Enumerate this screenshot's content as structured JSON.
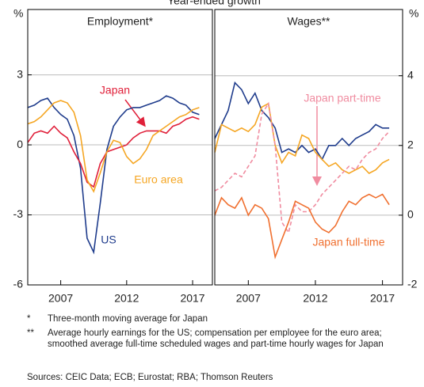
{
  "title": "Year-ended growth",
  "chart_data": [
    {
      "type": "line",
      "title": "Employment*",
      "y_unit": "%",
      "yaxis_side": "left",
      "x": [
        2004.5,
        2005,
        2005.5,
        2006,
        2006.5,
        2007,
        2007.5,
        2008,
        2008.5,
        2009,
        2009.5,
        2010,
        2010.5,
        2011,
        2011.5,
        2012,
        2012.5,
        2013,
        2013.5,
        2014,
        2014.5,
        2015,
        2015.5,
        2016,
        2016.5,
        2017,
        2017.5
      ],
      "xlim": [
        2004.5,
        2018.5
      ],
      "xticks": [
        2007,
        2012,
        2017
      ],
      "ylim": [
        -6,
        5.8
      ],
      "yticks": [
        -6,
        -3,
        0,
        3
      ],
      "grid": true,
      "series": [
        {
          "name": "US",
          "color": "#1f3c8c",
          "values": [
            1.6,
            1.7,
            1.9,
            2.0,
            1.6,
            1.3,
            1.1,
            0.4,
            -1.0,
            -4.0,
            -4.6,
            -2.5,
            -0.2,
            0.8,
            1.2,
            1.5,
            1.6,
            1.6,
            1.7,
            1.8,
            1.9,
            2.1,
            2.0,
            1.8,
            1.7,
            1.4,
            1.3
          ]
        },
        {
          "name": "Japan",
          "color": "#e0203a",
          "values": [
            0.1,
            0.5,
            0.6,
            0.5,
            0.8,
            0.5,
            0.3,
            -0.3,
            -0.8,
            -1.6,
            -1.8,
            -0.8,
            -0.3,
            -0.2,
            -0.1,
            0.0,
            0.3,
            0.5,
            0.6,
            0.6,
            0.6,
            0.5,
            0.8,
            0.9,
            1.1,
            1.2,
            1.1
          ]
        },
        {
          "name": "Euro area",
          "color": "#f5a623",
          "values": [
            0.9,
            1.0,
            1.2,
            1.5,
            1.8,
            1.9,
            1.8,
            1.4,
            0.4,
            -1.5,
            -2.0,
            -1.2,
            -0.3,
            0.2,
            0.1,
            -0.5,
            -0.8,
            -0.6,
            -0.2,
            0.4,
            0.6,
            0.8,
            1.0,
            1.2,
            1.3,
            1.5,
            1.6
          ]
        }
      ]
    },
    {
      "type": "line",
      "title": "Wages**",
      "y_unit": "%",
      "yaxis_side": "right",
      "x": [
        2004.5,
        2005,
        2005.5,
        2006,
        2006.5,
        2007,
        2007.5,
        2008,
        2008.5,
        2009,
        2009.5,
        2010,
        2010.5,
        2011,
        2011.5,
        2012,
        2012.5,
        2013,
        2013.5,
        2014,
        2014.5,
        2015,
        2015.5,
        2016,
        2016.5,
        2017,
        2017.5
      ],
      "xlim": [
        2004.5,
        2018.5
      ],
      "xticks": [
        2007,
        2012,
        2017
      ],
      "ylim": [
        -2,
        5.9
      ],
      "yticks": [
        -2,
        0,
        2,
        4
      ],
      "grid": true,
      "series": [
        {
          "color": "#1f3c8c",
          "values": [
            2.2,
            2.6,
            3.0,
            3.8,
            3.6,
            3.2,
            3.5,
            3.0,
            2.8,
            2.5,
            1.8,
            1.9,
            1.8,
            2.0,
            1.8,
            1.9,
            1.6,
            2.0,
            2.0,
            2.2,
            2.0,
            2.2,
            2.3,
            2.4,
            2.6,
            2.5,
            2.5
          ]
        },
        {
          "color": "#f5a623",
          "values": [
            1.8,
            2.6,
            2.5,
            2.4,
            2.5,
            2.4,
            2.6,
            3.1,
            3.2,
            2.0,
            1.5,
            1.8,
            1.7,
            2.3,
            2.2,
            1.8,
            1.6,
            1.4,
            1.5,
            1.3,
            1.2,
            1.3,
            1.4,
            1.2,
            1.3,
            1.5,
            1.6
          ]
        },
        {
          "name": "Japan part-time",
          "color": "#f08ca0",
          "dash": true,
          "values": [
            0.7,
            0.8,
            1.0,
            1.2,
            1.1,
            1.4,
            1.7,
            2.9,
            3.2,
            2.0,
            -0.2,
            -0.5,
            0.3,
            0.1,
            0.1,
            0.3,
            0.6,
            0.8,
            1.0,
            1.2,
            1.4,
            1.3,
            1.6,
            1.8,
            1.9,
            2.2,
            2.4
          ]
        },
        {
          "name": "Japan full-time",
          "color": "#f07030",
          "values": [
            0.0,
            0.5,
            0.3,
            0.2,
            0.5,
            0.0,
            0.3,
            0.2,
            -0.1,
            -1.2,
            -0.7,
            -0.2,
            0.4,
            0.3,
            0.2,
            -0.2,
            -0.4,
            -0.5,
            -0.3,
            0.1,
            0.4,
            0.3,
            0.5,
            0.6,
            0.5,
            0.6,
            0.3
          ]
        }
      ]
    }
  ],
  "notes": [
    {
      "marker": "*",
      "text": "Three-month moving average for Japan"
    },
    {
      "marker": "**",
      "text": "Average hourly earnings for the US; compensation per employee for the euro area; smoothed average full-time scheduled wages and part-time hourly wages for Japan"
    }
  ],
  "sources": "Sources: CEIC Data; ECB; Eurostat; RBA; Thomson Reuters"
}
